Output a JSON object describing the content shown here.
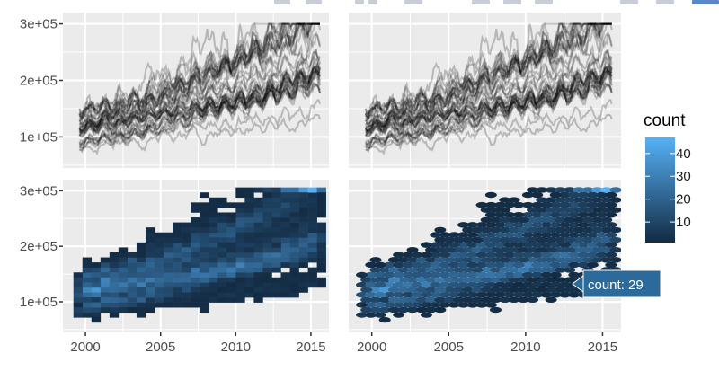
{
  "chart_data": {
    "type": "multi-panel",
    "panels": [
      {
        "name": "panel-top-left",
        "kind": "line",
        "description_series": "many semi-transparent black lines"
      },
      {
        "name": "panel-top-right",
        "kind": "line",
        "description_series": "many semi-transparent black lines"
      },
      {
        "name": "panel-bottom-left",
        "kind": "heatmap-rect"
      },
      {
        "name": "panel-bottom-right",
        "kind": "heatmap-hex"
      }
    ],
    "x_ticks": [
      2000,
      2005,
      2010,
      2015
    ],
    "x_tick_labels": [
      "2000",
      "2005",
      "2010",
      "2015"
    ],
    "xlim": [
      1998.5,
      2016.2
    ],
    "y_ticks": [
      100000,
      200000,
      300000
    ],
    "y_tick_labels": [
      "1e+05",
      "2e+05",
      "3e+05"
    ],
    "ylim": [
      45000,
      320000
    ],
    "line_series_count": 40,
    "line_value_range": [
      60000,
      300000
    ],
    "legend": {
      "title": "count",
      "ticks": [
        10,
        20,
        30,
        40
      ],
      "tick_labels": [
        "10",
        "20",
        "30",
        "40"
      ],
      "range": [
        1,
        47
      ],
      "color_low": "#132b43",
      "color_high": "#56b1f7"
    },
    "tooltip": {
      "text": "count: 29",
      "value": 29
    }
  },
  "colors": {
    "panel_bg": "#ebebeb",
    "grid": "#ffffff",
    "line": "#000000",
    "tooltip_bg": "#2b6a9a"
  }
}
